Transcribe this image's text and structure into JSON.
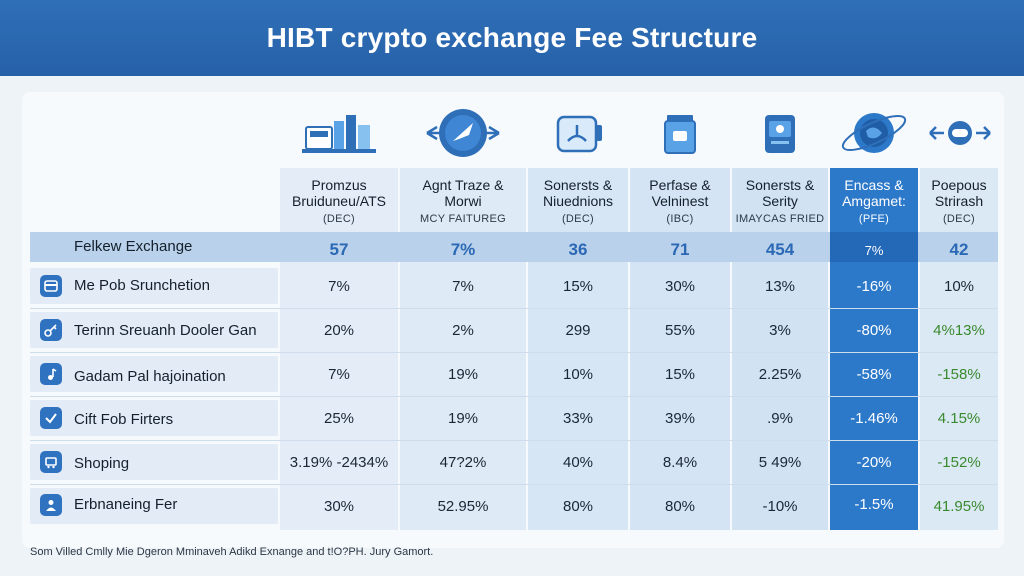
{
  "title": "HIBT crypto exchange Fee Structure",
  "columns": [
    {
      "l1": "Promzus",
      "l2": "Bruiduneu/ATS",
      "l3": "(DEC)",
      "icon": "exchange-building-icon"
    },
    {
      "l1": "Agnt Traze &",
      "l2": "Morwi",
      "l3": "MCY FAITUREG",
      "icon": "transfer-arrows-icon"
    },
    {
      "l1": "Sonersts &",
      "l2": "Niuednions",
      "l3": "(DEC)",
      "icon": "wallet-icon"
    },
    {
      "l1": "Perfase &",
      "l2": "Velninest",
      "l3": "(IBC)",
      "icon": "jar-icon"
    },
    {
      "l1": "Sonersts &",
      "l2": "Serity",
      "l3": "IMAYCAS FRIED",
      "icon": "card-icon"
    },
    {
      "l1": "Encass &",
      "l2": "Amgamet:",
      "l3": "(PFE)",
      "icon": "globe-orbit-icon"
    },
    {
      "l1": "Poepous",
      "l2": "Strirash",
      "l3": "(DEC)",
      "icon": "link-arrows-icon"
    }
  ],
  "band": {
    "label": "Felkew Exchange",
    "values": [
      "57",
      "7%",
      "36",
      "71",
      "454",
      "7%",
      "42"
    ]
  },
  "rows": [
    {
      "label": "Me Pob Srunchetion",
      "icon": "card-icon",
      "cells": [
        "7%",
        "7%",
        "15%",
        "30%",
        "13%",
        "-16%",
        "10%"
      ]
    },
    {
      "label": "Terinn Sreuanh Dooler Gan",
      "icon": "key-icon",
      "cells": [
        "20%",
        "2%",
        "299",
        "55%",
        "3%",
        "-80%",
        "4%13%"
      ]
    },
    {
      "label": "Gadam Pal hajoination",
      "icon": "music-icon",
      "cells": [
        "7%",
        "19%",
        "10%",
        "15%",
        "2.25%",
        "-58%",
        "-158%"
      ]
    },
    {
      "label": "Cift Fob Firters",
      "icon": "check-icon",
      "cells": [
        "25%",
        "19%",
        "33%",
        "39%",
        ".9%",
        "-1.46%",
        "4.15%"
      ]
    },
    {
      "label": "Shoping",
      "icon": "cart-icon",
      "cells": [
        "3.19% -2434%",
        "47?2%",
        "40%",
        "8.4%",
        "5 49%",
        "-20%",
        "-152%"
      ]
    },
    {
      "label": "Erbnaneing Fer",
      "icon": "person-icon",
      "cells": [
        "30%",
        "52.95%",
        "80%",
        "80%",
        "-10%",
        "-1.5%",
        "41.95%"
      ]
    }
  ],
  "footnote": "Som Villed Cmlly Mie Dgeron Mminaveh Adikd Exnange and t!O?PH. Jury Gamort.",
  "colors": {
    "title_bg": "#2f6fb8",
    "highlight_col": "#2c78c9",
    "accent_text": "#2b68b5",
    "positive_green": "#3a8a2e"
  }
}
